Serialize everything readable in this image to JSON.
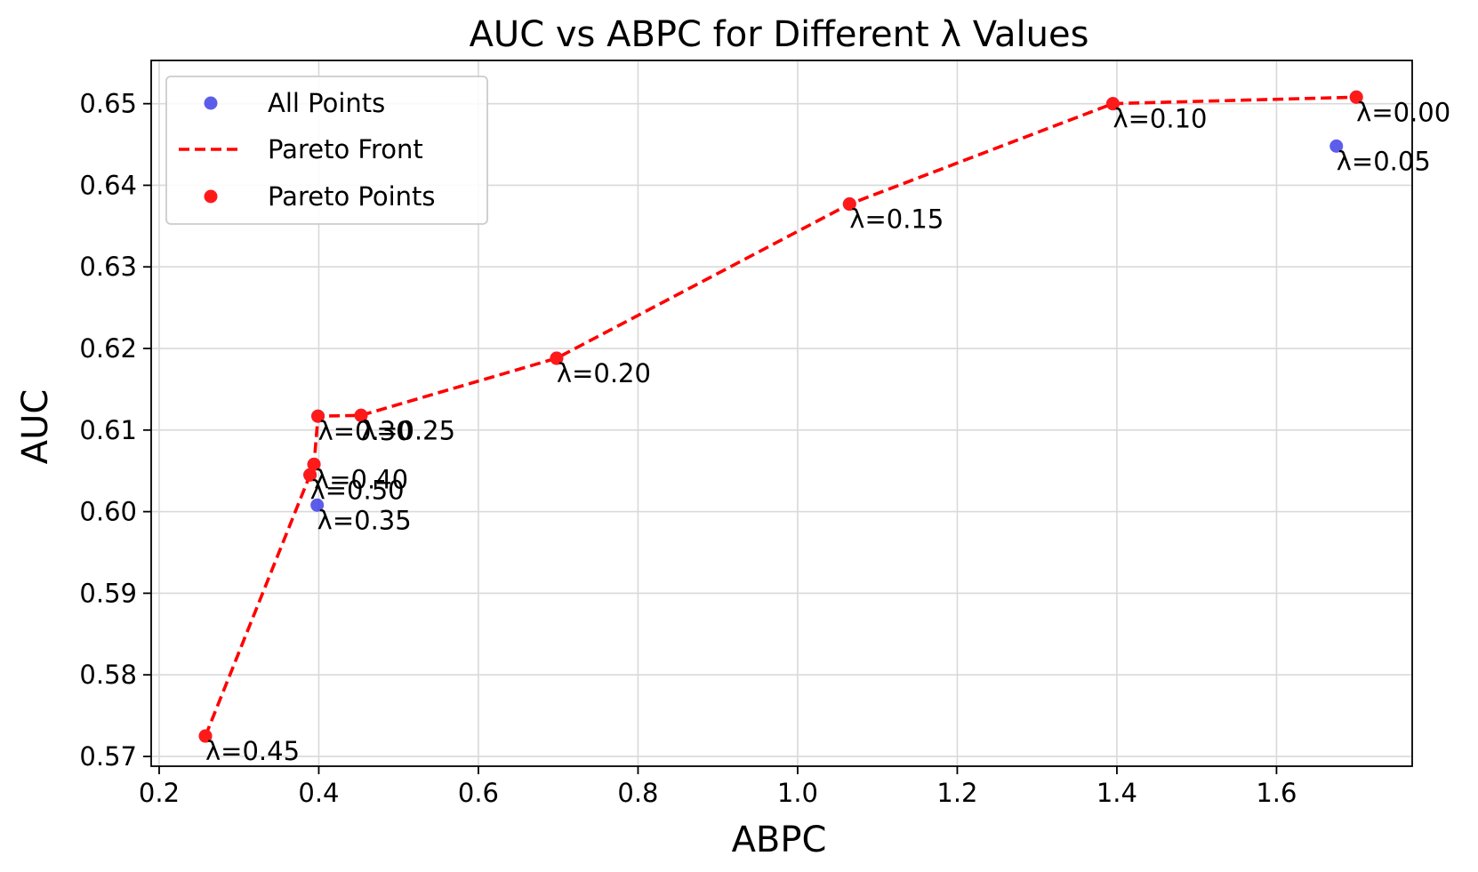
{
  "chart_data": {
    "type": "scatter",
    "title": "AUC vs ABPC for Different λ Values",
    "xlabel": "ABPC",
    "ylabel": "AUC",
    "xlim": [
      0.19,
      1.77
    ],
    "ylim": [
      0.5688,
      0.6553
    ],
    "xticks": [
      0.2,
      0.4,
      0.6,
      0.8,
      1.0,
      1.2,
      1.4,
      1.6
    ],
    "xtick_labels": [
      "0.2",
      "0.4",
      "0.6",
      "0.8",
      "1.0",
      "1.2",
      "1.4",
      "1.6"
    ],
    "yticks": [
      0.57,
      0.58,
      0.59,
      0.6,
      0.61,
      0.62,
      0.63,
      0.64,
      0.65
    ],
    "ytick_labels": [
      "0.57",
      "0.58",
      "0.59",
      "0.60",
      "0.61",
      "0.62",
      "0.63",
      "0.64",
      "0.65"
    ],
    "grid": true,
    "legend_position": "top-left",
    "legend": [
      {
        "label": "All Points",
        "kind": "marker",
        "color": "#3434e6"
      },
      {
        "label": "Pareto Front",
        "kind": "dashed-line",
        "color": "#ff0000"
      },
      {
        "label": "Pareto Points",
        "kind": "marker",
        "color": "#ff1a1a"
      }
    ],
    "series": [
      {
        "name": "All Points",
        "color": "#3434e6",
        "points": [
          {
            "x": 1.7,
            "y": 0.6508,
            "label": "λ=0.00"
          },
          {
            "x": 1.675,
            "y": 0.6448,
            "label": "λ=0.05"
          },
          {
            "x": 1.395,
            "y": 0.65,
            "label": "λ=0.10"
          },
          {
            "x": 1.065,
            "y": 0.6377,
            "label": "λ=0.15"
          },
          {
            "x": 0.698,
            "y": 0.6188,
            "label": "λ=0.20"
          },
          {
            "x": 0.453,
            "y": 0.6118,
            "label": "λ=0.25"
          },
          {
            "x": 0.399,
            "y": 0.6117,
            "label": "λ=0.30"
          },
          {
            "x": 0.398,
            "y": 0.6008,
            "label": "λ=0.35"
          },
          {
            "x": 0.394,
            "y": 0.6058,
            "label": "λ=0.40"
          },
          {
            "x": 0.258,
            "y": 0.5725,
            "label": "λ=0.45"
          },
          {
            "x": 0.389,
            "y": 0.6045,
            "label": "λ=0.50"
          }
        ]
      },
      {
        "name": "Pareto Front",
        "color": "#ff0000",
        "points": [
          {
            "x": 0.258,
            "y": 0.5725
          },
          {
            "x": 0.389,
            "y": 0.6045
          },
          {
            "x": 0.394,
            "y": 0.6058
          },
          {
            "x": 0.399,
            "y": 0.6117
          },
          {
            "x": 0.453,
            "y": 0.6118
          },
          {
            "x": 0.698,
            "y": 0.6188
          },
          {
            "x": 1.065,
            "y": 0.6377
          },
          {
            "x": 1.395,
            "y": 0.65
          },
          {
            "x": 1.7,
            "y": 0.6508
          }
        ]
      },
      {
        "name": "Pareto Points",
        "color": "#ff1a1a",
        "points": [
          {
            "x": 0.258,
            "y": 0.5725
          },
          {
            "x": 0.389,
            "y": 0.6045
          },
          {
            "x": 0.394,
            "y": 0.6058
          },
          {
            "x": 0.399,
            "y": 0.6117
          },
          {
            "x": 0.453,
            "y": 0.6118
          },
          {
            "x": 0.698,
            "y": 0.6188
          },
          {
            "x": 1.065,
            "y": 0.6377
          },
          {
            "x": 1.395,
            "y": 0.65
          },
          {
            "x": 1.7,
            "y": 0.6508
          }
        ]
      }
    ]
  }
}
